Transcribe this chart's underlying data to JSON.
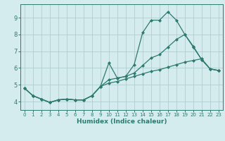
{
  "xlabel": "Humidex (Indice chaleur)",
  "ylabel": "",
  "bg_color": "#d4ecee",
  "grid_color": "#b0cdd0",
  "line_color": "#2d7a6e",
  "xlim": [
    -0.5,
    23.5
  ],
  "ylim": [
    3.5,
    9.8
  ],
  "xticks": [
    0,
    1,
    2,
    3,
    4,
    5,
    6,
    7,
    8,
    9,
    10,
    11,
    12,
    13,
    14,
    15,
    16,
    17,
    18,
    19,
    20,
    21,
    22,
    23
  ],
  "yticks": [
    4,
    5,
    6,
    7,
    8,
    9
  ],
  "series": [
    [
      4.8,
      4.35,
      4.15,
      3.95,
      4.1,
      4.15,
      4.1,
      4.1,
      4.35,
      4.9,
      6.3,
      5.4,
      5.5,
      6.2,
      8.1,
      8.85,
      8.85,
      9.35,
      8.85,
      8.0,
      7.3,
      6.5,
      5.95,
      5.85
    ],
    [
      4.8,
      4.35,
      4.15,
      3.95,
      4.1,
      4.15,
      4.1,
      4.1,
      4.35,
      4.9,
      5.3,
      5.4,
      5.5,
      5.7,
      6.15,
      6.6,
      6.8,
      7.25,
      7.7,
      8.0,
      7.25,
      6.5,
      5.95,
      5.85
    ],
    [
      4.8,
      4.35,
      4.15,
      3.95,
      4.1,
      4.15,
      4.1,
      4.1,
      4.35,
      4.9,
      5.1,
      5.2,
      5.35,
      5.5,
      5.65,
      5.8,
      5.9,
      6.05,
      6.2,
      6.35,
      6.45,
      6.55,
      5.95,
      5.85
    ]
  ]
}
